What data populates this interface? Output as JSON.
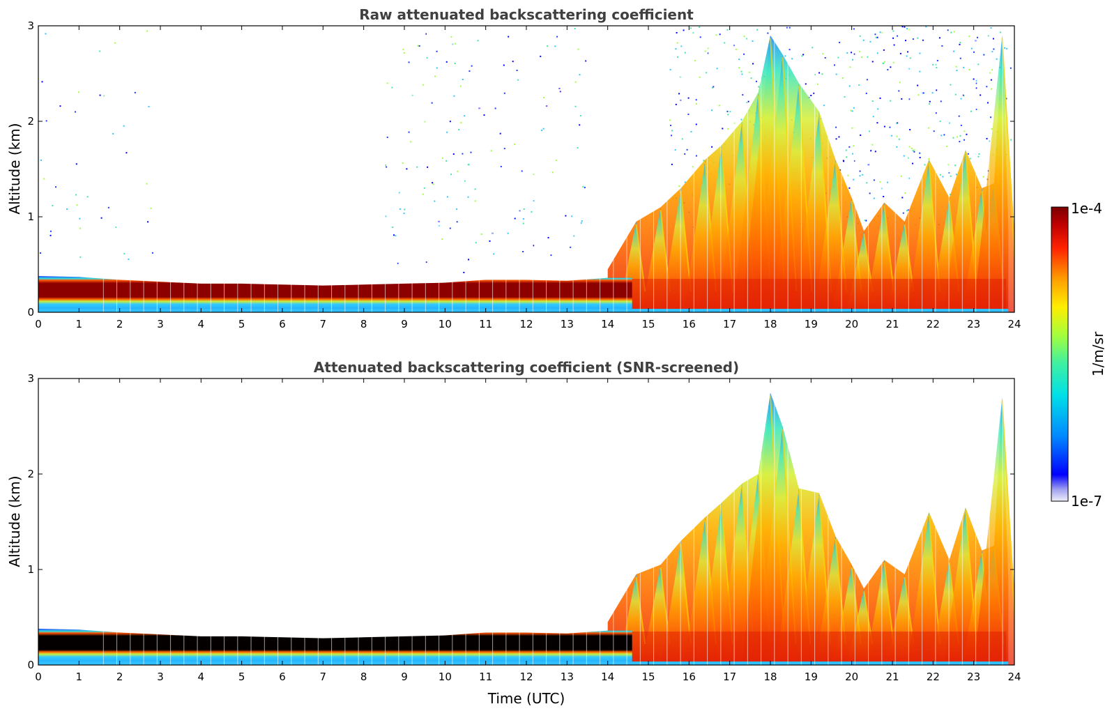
{
  "chart_data": [
    {
      "type": "heatmap",
      "title": "Raw attenuated backscattering coefficient",
      "xlabel": "",
      "ylabel": "Altitude (km)",
      "xlim": [
        0,
        24
      ],
      "ylim": [
        0,
        3
      ],
      "xticks": [
        "0",
        "1",
        "2",
        "3",
        "4",
        "5",
        "6",
        "7",
        "8",
        "9",
        "10",
        "11",
        "12",
        "13",
        "14",
        "15",
        "16",
        "17",
        "18",
        "19",
        "20",
        "21",
        "22",
        "23",
        "24"
      ],
      "yticks": [
        "0",
        "1",
        "2",
        "3"
      ],
      "features": {
        "nocturnal_layer_top_km": [
          [
            0,
            0.38
          ],
          [
            1,
            0.37
          ],
          [
            2,
            0.34
          ],
          [
            3,
            0.32
          ],
          [
            4,
            0.3
          ],
          [
            5,
            0.3
          ],
          [
            6,
            0.29
          ],
          [
            7,
            0.28
          ],
          [
            8,
            0.29
          ],
          [
            9,
            0.3
          ],
          [
            10,
            0.31
          ],
          [
            11,
            0.34
          ],
          [
            12,
            0.34
          ],
          [
            13,
            0.33
          ],
          [
            14,
            0.36
          ]
        ],
        "convective_plume_tops_km": [
          [
            14.7,
            0.95
          ],
          [
            15.3,
            1.1
          ],
          [
            15.8,
            1.3
          ],
          [
            16.4,
            1.6
          ],
          [
            16.8,
            1.75
          ],
          [
            17.3,
            2.0
          ],
          [
            17.7,
            2.3
          ],
          [
            18.0,
            2.9
          ],
          [
            18.3,
            2.7
          ],
          [
            18.7,
            2.4
          ],
          [
            19.2,
            2.1
          ],
          [
            19.6,
            1.6
          ],
          [
            20.0,
            1.2
          ],
          [
            20.3,
            0.85
          ],
          [
            20.8,
            1.15
          ],
          [
            21.3,
            0.95
          ],
          [
            21.9,
            1.6
          ],
          [
            22.4,
            1.2
          ],
          [
            22.8,
            1.7
          ],
          [
            23.2,
            1.3
          ],
          [
            23.5,
            1.35
          ],
          [
            23.7,
            2.9
          ]
        ]
      },
      "noisy_background": true
    },
    {
      "type": "heatmap",
      "title": "Attenuated backscattering coefficient (SNR-screened)",
      "xlabel": "Time (UTC)",
      "ylabel": "Altitude (km)",
      "xlim": [
        0,
        24
      ],
      "ylim": [
        0,
        3
      ],
      "xticks": [
        "0",
        "1",
        "2",
        "3",
        "4",
        "5",
        "6",
        "7",
        "8",
        "9",
        "10",
        "11",
        "12",
        "13",
        "14",
        "15",
        "16",
        "17",
        "18",
        "19",
        "20",
        "21",
        "22",
        "23",
        "24"
      ],
      "yticks": [
        "0",
        "1",
        "2",
        "3"
      ],
      "features": {
        "nocturnal_layer_top_km": [
          [
            0,
            0.38
          ],
          [
            1,
            0.37
          ],
          [
            2,
            0.34
          ],
          [
            3,
            0.32
          ],
          [
            4,
            0.3
          ],
          [
            5,
            0.3
          ],
          [
            6,
            0.29
          ],
          [
            7,
            0.28
          ],
          [
            8,
            0.29
          ],
          [
            9,
            0.3
          ],
          [
            10,
            0.31
          ],
          [
            11,
            0.34
          ],
          [
            12,
            0.34
          ],
          [
            13,
            0.33
          ],
          [
            14,
            0.36
          ]
        ],
        "convective_plume_tops_km": [
          [
            14.7,
            0.95
          ],
          [
            15.3,
            1.05
          ],
          [
            15.8,
            1.3
          ],
          [
            16.4,
            1.55
          ],
          [
            16.8,
            1.7
          ],
          [
            17.3,
            1.9
          ],
          [
            17.7,
            2.0
          ],
          [
            18.0,
            2.85
          ],
          [
            18.3,
            2.5
          ],
          [
            18.7,
            1.85
          ],
          [
            19.2,
            1.8
          ],
          [
            19.6,
            1.35
          ],
          [
            20.0,
            1.05
          ],
          [
            20.3,
            0.8
          ],
          [
            20.8,
            1.1
          ],
          [
            21.3,
            0.95
          ],
          [
            21.9,
            1.6
          ],
          [
            22.4,
            1.1
          ],
          [
            22.8,
            1.65
          ],
          [
            23.2,
            1.2
          ],
          [
            23.5,
            1.25
          ],
          [
            23.7,
            2.8
          ]
        ]
      },
      "noisy_background": false
    }
  ],
  "colorbar": {
    "label": "1/m/sr",
    "max_label": "1e-4",
    "min_label": "1e-7",
    "colors": [
      "#e6e6f5",
      "#0000ff",
      "#00aaff",
      "#00e5e5",
      "#80ff80",
      "#ffff00",
      "#ffaa00",
      "#ff3300",
      "#cc0000",
      "#800000"
    ]
  }
}
